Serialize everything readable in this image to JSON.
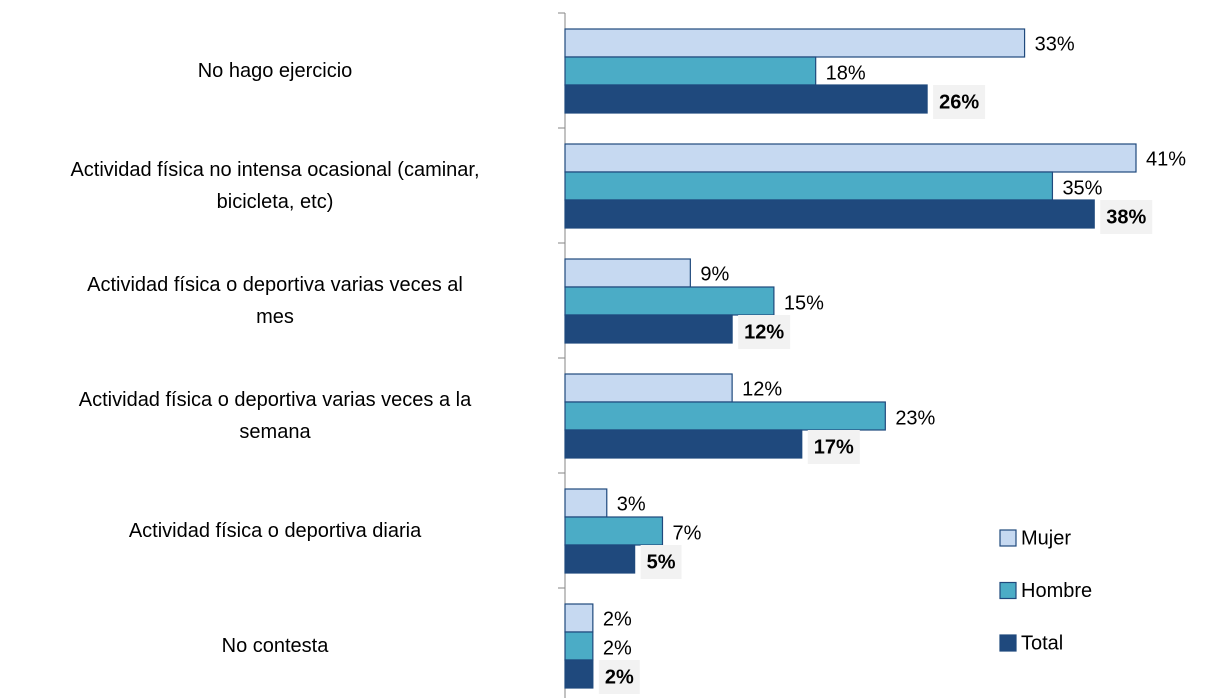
{
  "chart_data": {
    "type": "bar",
    "orientation": "horizontal",
    "categories": [
      "No hago ejercicio",
      "Actividad física no intensa ocasional (caminar,\nbicicleta, etc)",
      "Actividad física o deportiva varias veces al\nmes",
      "Actividad física o deportiva varias veces a la\nsemana",
      "Actividad física o deportiva diaria",
      "No contesta"
    ],
    "series": [
      {
        "name": "Mujer",
        "color": "#c6d9f1",
        "values": [
          33,
          41,
          9,
          12,
          3,
          2
        ],
        "value_labels": [
          "33%",
          "41%",
          "9%",
          "12%",
          "3%",
          "2%"
        ]
      },
      {
        "name": "Hombre",
        "color": "#4bacc6",
        "values": [
          18,
          35,
          15,
          23,
          7,
          2
        ],
        "value_labels": [
          "18%",
          "35%",
          "15%",
          "23%",
          "7%",
          "2%"
        ]
      },
      {
        "name": "Total",
        "color": "#1f497d",
        "values": [
          26,
          38,
          12,
          17,
          5,
          2
        ],
        "value_labels": [
          "26%",
          "38%",
          "12%",
          "17%",
          "5%",
          "2%"
        ]
      }
    ],
    "legend": "lower right"
  }
}
